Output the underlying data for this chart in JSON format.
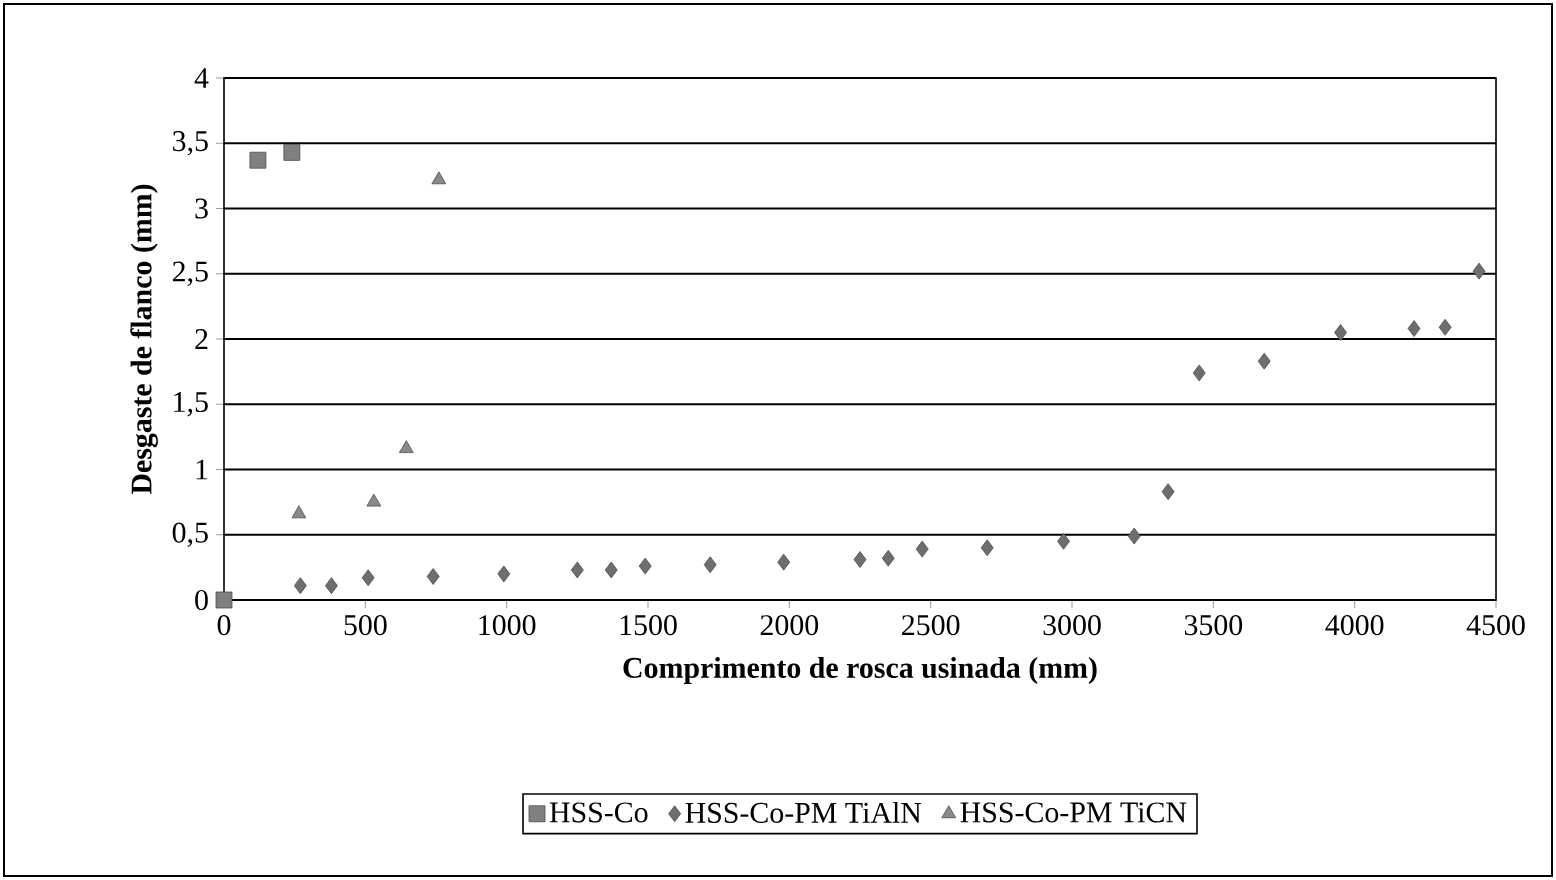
{
  "chart_data": {
    "type": "scatter",
    "xlabel": "Comprimento de rosca usinada (mm)",
    "ylabel": "Desgaste de flanco  (mm)",
    "xlim": [
      0,
      4500
    ],
    "ylim": [
      0,
      4
    ],
    "xticks": [
      0,
      500,
      1000,
      1500,
      2000,
      2500,
      3000,
      3500,
      4000,
      4500
    ],
    "yticks": [
      0,
      {
        "value": 0.5,
        "label": "0,5"
      },
      1,
      {
        "value": 1.5,
        "label": "1,5"
      },
      2,
      {
        "value": 2.5,
        "label": "2,5"
      },
      3,
      {
        "value": 3.5,
        "label": "3,5"
      },
      4
    ],
    "grid": "y",
    "legend": "bottom",
    "series": [
      {
        "name": "HSS-Co",
        "color": "#808080",
        "marker": "square",
        "x": [
          0,
          120,
          240
        ],
        "values": [
          0,
          3.37,
          3.43
        ]
      },
      {
        "name": "HSS-Co-PM TiAlN",
        "color": "#6e6e6e",
        "marker": "diamond",
        "x": [
          270,
          380,
          510,
          740,
          990,
          1250,
          1370,
          1490,
          1720,
          1980,
          2250,
          2350,
          2470,
          2700,
          2970,
          3220,
          3340,
          3450,
          3680,
          3950,
          4210,
          4320,
          4440
        ],
        "values": [
          0.11,
          0.11,
          0.17,
          0.18,
          0.2,
          0.23,
          0.23,
          0.26,
          0.27,
          0.29,
          0.31,
          0.32,
          0.39,
          0.4,
          0.45,
          0.49,
          0.83,
          1.74,
          1.83,
          2.05,
          2.08,
          2.09,
          2.52
        ]
      },
      {
        "name": "HSS-Co-PM TiCN",
        "color": "#8a8a8a",
        "marker": "triangle",
        "x": [
          265,
          530,
          645,
          760
        ],
        "values": [
          0.66,
          0.75,
          1.16,
          3.22
        ]
      }
    ]
  }
}
